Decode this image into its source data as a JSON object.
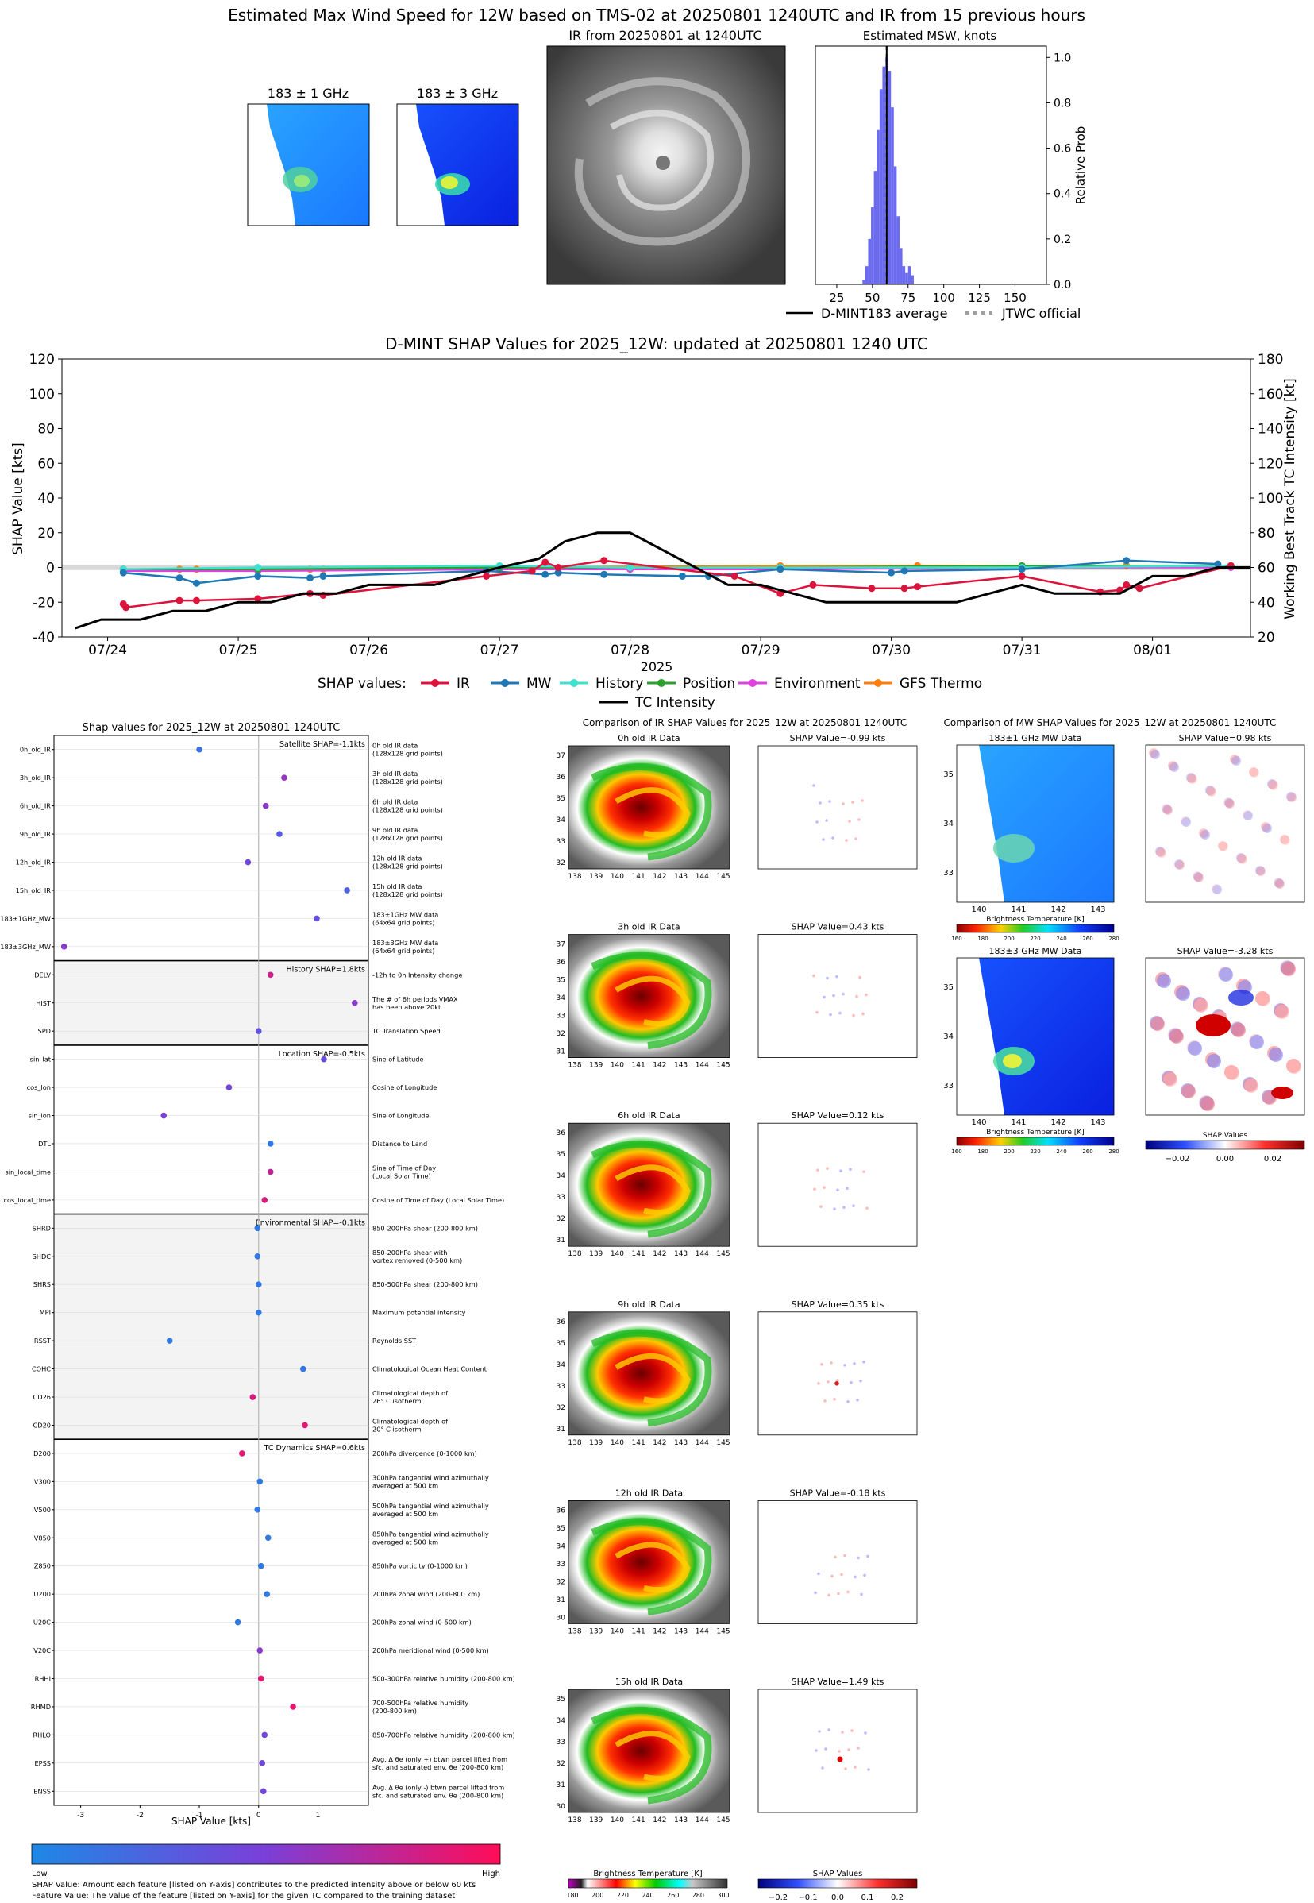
{
  "colors": {
    "ir": "#dc143c",
    "mw": "#1f77b4",
    "history": "#40e0d0",
    "position": "#2ca02c",
    "environment": "#e040e0",
    "gfs": "#ff7f0e",
    "intensity": "#000000",
    "hist_bar": "#6b6bf0",
    "shap_low": "#1e88e5",
    "shap_high": "#ff0d57"
  },
  "top": {
    "title": "Estimated Max Wind Speed for 12W based on TMS-02 at 20250801 1240UTC and IR from 15 previous hours",
    "mw1_title": "183 ± 1 GHz",
    "mw3_title": "183 ± 3 GHz",
    "ir_title": "IR from 20250801 at 1240UTC",
    "hist_title": "Estimated MSW, knots",
    "hist_ylabel": "Relative Prob",
    "legend_avg": "D-MINT183 average",
    "legend_jtwc": "JTWC official"
  },
  "hist_chart": {
    "type": "bar",
    "x_ticks": [
      25,
      50,
      75,
      100,
      125,
      150
    ],
    "y_ticks": [
      "0.0",
      "0.2",
      "0.4",
      "0.6",
      "0.8",
      "1.0"
    ],
    "xlim": [
      10,
      172
    ],
    "ylim": [
      0,
      1.05
    ],
    "bins": [
      {
        "x": 44,
        "v": 0.02
      },
      {
        "x": 46,
        "v": 0.08
      },
      {
        "x": 48,
        "v": 0.2
      },
      {
        "x": 50,
        "v": 0.34
      },
      {
        "x": 52,
        "v": 0.5
      },
      {
        "x": 54,
        "v": 0.68
      },
      {
        "x": 56,
        "v": 0.86
      },
      {
        "x": 58,
        "v": 0.96
      },
      {
        "x": 60,
        "v": 1.0
      },
      {
        "x": 62,
        "v": 0.94
      },
      {
        "x": 64,
        "v": 0.78
      },
      {
        "x": 66,
        "v": 0.52
      },
      {
        "x": 68,
        "v": 0.3
      },
      {
        "x": 70,
        "v": 0.16
      },
      {
        "x": 72,
        "v": 0.08
      },
      {
        "x": 74,
        "v": 0.05
      },
      {
        "x": 76,
        "v": 0.08
      },
      {
        "x": 78,
        "v": 0.04
      }
    ],
    "average": 60,
    "jtwc": 60
  },
  "timeseries": {
    "title": "D-MINT SHAP Values for 2025_12W: updated at 20250801 1240 UTC",
    "ylabel_left": "SHAP Value [kts]",
    "ylabel_right": "Working Best Track TC Intensity [kt]",
    "xlabel": "2025",
    "left_ticks": [
      -40,
      -20,
      0,
      20,
      40,
      60,
      80,
      100,
      120
    ],
    "right_ticks": [
      20,
      40,
      60,
      80,
      100,
      120,
      140,
      160,
      180
    ],
    "date_ticks": [
      {
        "t": 0,
        "label": "07/24"
      },
      {
        "t": 1,
        "label": "07/25"
      },
      {
        "t": 2,
        "label": "07/26"
      },
      {
        "t": 3,
        "label": "07/27"
      },
      {
        "t": 4,
        "label": "07/28"
      },
      {
        "t": 5,
        "label": "07/29"
      },
      {
        "t": 6,
        "label": "07/30"
      },
      {
        "t": 7,
        "label": "07/31"
      },
      {
        "t": 8,
        "label": "08/01"
      }
    ],
    "legend_prefix": "SHAP values:",
    "legend": [
      "IR",
      "MW",
      "History",
      "Position",
      "Environment",
      "GFS Thermo",
      "TC Intensity"
    ],
    "intensity_points": [
      [
        -0.25,
        25
      ],
      [
        -0.05,
        30
      ],
      [
        0.25,
        30
      ],
      [
        0.5,
        35
      ],
      [
        0.75,
        35
      ],
      [
        1.0,
        40
      ],
      [
        1.25,
        40
      ],
      [
        1.5,
        45
      ],
      [
        1.75,
        45
      ],
      [
        2.0,
        50
      ],
      [
        2.5,
        50
      ],
      [
        2.75,
        55
      ],
      [
        3.0,
        60
      ],
      [
        3.3,
        65
      ],
      [
        3.5,
        75
      ],
      [
        3.75,
        80
      ],
      [
        4.0,
        80
      ],
      [
        4.25,
        70
      ],
      [
        4.5,
        60
      ],
      [
        4.75,
        50
      ],
      [
        5.0,
        50
      ],
      [
        5.25,
        45
      ],
      [
        5.5,
        40
      ],
      [
        6.0,
        40
      ],
      [
        6.5,
        40
      ],
      [
        6.75,
        45
      ],
      [
        7.0,
        50
      ],
      [
        7.25,
        45
      ],
      [
        7.5,
        45
      ],
      [
        7.75,
        45
      ],
      [
        8.0,
        55
      ],
      [
        8.25,
        55
      ],
      [
        8.5,
        60
      ],
      [
        8.75,
        60
      ]
    ],
    "ir_points": [
      [
        0.12,
        -21
      ],
      [
        0.14,
        -23
      ],
      [
        0.55,
        -19
      ],
      [
        0.68,
        -19
      ],
      [
        1.15,
        -18
      ],
      [
        1.55,
        -15
      ],
      [
        1.65,
        -16
      ],
      [
        2.9,
        -5
      ],
      [
        3.25,
        -2
      ],
      [
        3.35,
        3
      ],
      [
        3.45,
        0
      ],
      [
        3.8,
        4
      ],
      [
        4.8,
        -5
      ],
      [
        5.15,
        -15
      ],
      [
        5.4,
        -10
      ],
      [
        5.85,
        -12
      ],
      [
        6.1,
        -12
      ],
      [
        6.2,
        -11
      ],
      [
        7.0,
        -5
      ],
      [
        7.6,
        -14
      ],
      [
        7.75,
        -13
      ],
      [
        7.8,
        -10
      ],
      [
        7.9,
        -12
      ],
      [
        8.6,
        1
      ]
    ],
    "mw_points": [
      [
        0.12,
        -3
      ],
      [
        0.55,
        -6
      ],
      [
        0.68,
        -9
      ],
      [
        1.15,
        -5
      ],
      [
        1.55,
        -6
      ],
      [
        1.65,
        -5
      ],
      [
        2.9,
        -2
      ],
      [
        3.35,
        -4
      ],
      [
        3.45,
        -3
      ],
      [
        3.8,
        -4
      ],
      [
        4.4,
        -5
      ],
      [
        4.6,
        -5
      ],
      [
        5.15,
        -1
      ],
      [
        6.0,
        -3
      ],
      [
        6.1,
        -2
      ],
      [
        7.0,
        -1
      ],
      [
        7.8,
        4
      ],
      [
        8.5,
        2
      ]
    ],
    "hist_points": [
      [
        0.12,
        -1
      ],
      [
        1.15,
        0
      ],
      [
        3.0,
        1
      ],
      [
        4.0,
        0
      ],
      [
        5.15,
        0
      ],
      [
        7.0,
        0
      ],
      [
        8.6,
        1
      ]
    ],
    "pos_points": [
      [
        0.12,
        -1
      ],
      [
        1.15,
        -1
      ],
      [
        3.0,
        0
      ],
      [
        4.0,
        0
      ],
      [
        5.15,
        0
      ],
      [
        7.0,
        1
      ],
      [
        8.6,
        1
      ]
    ],
    "env_points": [
      [
        0.12,
        -2
      ],
      [
        1.15,
        -2
      ],
      [
        3.0,
        -1
      ],
      [
        4.0,
        -1
      ],
      [
        5.15,
        -1
      ],
      [
        7.0,
        0
      ],
      [
        8.6,
        0
      ]
    ],
    "gfs_points": [
      [
        0.12,
        -1
      ],
      [
        0.55,
        -1
      ],
      [
        0.68,
        -1
      ],
      [
        1.15,
        -1
      ],
      [
        1.55,
        -1
      ],
      [
        1.65,
        -1
      ],
      [
        3.0,
        0
      ],
      [
        5.15,
        1
      ],
      [
        6.2,
        1
      ],
      [
        7.0,
        1
      ],
      [
        7.8,
        1
      ],
      [
        8.6,
        1
      ]
    ]
  },
  "shap": {
    "title": "Shap values for 2025_12W at 20250801 1240UTC",
    "xlabel": "SHAP Value [kts]",
    "x_ticks": [
      -3,
      -2,
      -1,
      0,
      1
    ],
    "xlim": [
      -3.45,
      1.85
    ],
    "cbar_low": "Low",
    "cbar_high": "High",
    "footnote_1": "SHAP Value: Amount each feature [listed on Y-axis] contributes to the predicted intensity above or below 60 kts",
    "footnote_2": "Feature Value: The value of the feature [listed on Y-axis] for the given TC compared to the training dataset",
    "groups": [
      {
        "label": "Satellite SHAP=-1.1kts",
        "n": 8,
        "shaded": false
      },
      {
        "label": "History SHAP=1.8kts",
        "n": 3,
        "shaded": true
      },
      {
        "label": "Location SHAP=-0.5kts",
        "n": 6,
        "shaded": false
      },
      {
        "label": "Environmental SHAP=-0.1kts",
        "n": 8,
        "shaded": true
      },
      {
        "label": "TC Dynamics SHAP=0.6kts",
        "n": 13,
        "shaded": false
      }
    ],
    "features": [
      {
        "name": "0h_old_IR",
        "desc": [
          "0h old IR data",
          "(128x128 grid points)"
        ],
        "value": -1.0,
        "c": 0.15
      },
      {
        "name": "3h_old_IR",
        "desc": [
          "3h old IR data",
          "(128x128 grid points)"
        ],
        "value": 0.43,
        "c": 0.6
      },
      {
        "name": "6h_old_IR",
        "desc": [
          "6h old IR data",
          "(128x128 grid points)"
        ],
        "value": 0.12,
        "c": 0.55
      },
      {
        "name": "9h_old_IR",
        "desc": [
          "9h old IR data",
          "(128x128 grid points)"
        ],
        "value": 0.35,
        "c": 0.3
      },
      {
        "name": "12h_old_IR",
        "desc": [
          "12h old IR data",
          "(128x128 grid points)"
        ],
        "value": -0.18,
        "c": 0.45
      },
      {
        "name": "15h_old_IR",
        "desc": [
          "15h old IR data",
          "(128x128 grid points)"
        ],
        "value": 1.49,
        "c": 0.25
      },
      {
        "name": "183±1GHz_MW",
        "desc": [
          "183±1GHz MW data",
          "(64x64 grid points)"
        ],
        "value": 0.98,
        "c": 0.4
      },
      {
        "name": "183±3GHz_MW",
        "desc": [
          "183±3GHz MW data",
          "(64x64 grid points)"
        ],
        "value": -3.28,
        "c": 0.55
      },
      {
        "name": "DELV",
        "desc": [
          "-12h to 0h Intensity change"
        ],
        "value": 0.2,
        "c": 0.8
      },
      {
        "name": "HIST",
        "desc": [
          "The # of 6h periods VMAX",
          "has been above 20kt"
        ],
        "value": 1.62,
        "c": 0.55
      },
      {
        "name": "SPD",
        "desc": [
          "TC Translation Speed"
        ],
        "value": 0.0,
        "c": 0.35
      },
      {
        "name": "sin_lat",
        "desc": [
          "Sine of Latitude"
        ],
        "value": 1.1,
        "c": 0.4
      },
      {
        "name": "cos_lon",
        "desc": [
          "Cosine of Longitude"
        ],
        "value": -0.5,
        "c": 0.45
      },
      {
        "name": "sin_lon",
        "desc": [
          "Sine of Longitude"
        ],
        "value": -1.6,
        "c": 0.5
      },
      {
        "name": "DTL",
        "desc": [
          "Distance to Land"
        ],
        "value": 0.2,
        "c": 0.1
      },
      {
        "name": "sin_local_time",
        "desc": [
          "Sine of Time of Day",
          "(Local Solar Time)"
        ],
        "value": 0.2,
        "c": 0.75
      },
      {
        "name": "cos_local_time",
        "desc": [
          "Cosine of Time of Day (Local Solar Time)"
        ],
        "value": 0.1,
        "c": 0.85
      },
      {
        "name": "SHRD",
        "desc": [
          "850-200hPa shear (200-800 km)"
        ],
        "value": -0.02,
        "c": 0.1
      },
      {
        "name": "SHDC",
        "desc": [
          "850-200hPa shear with",
          "vortex removed (0-500 km)"
        ],
        "value": -0.02,
        "c": 0.1
      },
      {
        "name": "SHRS",
        "desc": [
          "850-500hPa shear (200-800 km)"
        ],
        "value": 0.0,
        "c": 0.1
      },
      {
        "name": "MPI",
        "desc": [
          "Maximum potential intensity"
        ],
        "value": 0.0,
        "c": 0.1
      },
      {
        "name": "RSST",
        "desc": [
          "Reynolds SST"
        ],
        "value": -1.5,
        "c": 0.1
      },
      {
        "name": "COHC",
        "desc": [
          "Climatological Ocean Heat Content"
        ],
        "value": 0.75,
        "c": 0.1
      },
      {
        "name": "CD26",
        "desc": [
          "Climatological depth of",
          "26° C isotherm"
        ],
        "value": -0.1,
        "c": 0.85
      },
      {
        "name": "CD20",
        "desc": [
          "Climatological depth of",
          "20° C isotherm"
        ],
        "value": 0.78,
        "c": 0.9
      },
      {
        "name": "D200",
        "desc": [
          "200hPa divergence (0-1000 km)"
        ],
        "value": -0.28,
        "c": 0.9
      },
      {
        "name": "V300",
        "desc": [
          "300hPa tangential wind azimuthally",
          "averaged at 500 km"
        ],
        "value": 0.02,
        "c": 0.1
      },
      {
        "name": "V500",
        "desc": [
          "500hPa tangential wind azimuthally",
          "averaged at 500 km"
        ],
        "value": -0.02,
        "c": 0.1
      },
      {
        "name": "V850",
        "desc": [
          "850hPa tangential wind azimuthally",
          "averaged at 500 km"
        ],
        "value": 0.16,
        "c": 0.1
      },
      {
        "name": "Z850",
        "desc": [
          "850hPa vorticity (0-1000 km)"
        ],
        "value": 0.04,
        "c": 0.1
      },
      {
        "name": "U200",
        "desc": [
          "200hPa zonal wind (200-800 km)"
        ],
        "value": 0.14,
        "c": 0.1
      },
      {
        "name": "U20C",
        "desc": [
          "200hPa zonal wind (0-500 km)"
        ],
        "value": -0.35,
        "c": 0.1
      },
      {
        "name": "V20C",
        "desc": [
          "200hPa meridional wind (0-500 km)"
        ],
        "value": 0.02,
        "c": 0.55
      },
      {
        "name": "RHHI",
        "desc": [
          "500-300hPa relative humidity (200-800 km)"
        ],
        "value": 0.04,
        "c": 0.9
      },
      {
        "name": "RHMD",
        "desc": [
          "700-500hPa relative humidity",
          "(200-800 km)"
        ],
        "value": 0.58,
        "c": 0.9
      },
      {
        "name": "RHLO",
        "desc": [
          "850-700hPa relative humidity (200-800 km)"
        ],
        "value": 0.1,
        "c": 0.45
      },
      {
        "name": "EPSS",
        "desc": [
          "Avg. Δ θe (only +) btwn parcel lifted from",
          "sfc. and saturated env. θe (200-800 km)"
        ],
        "value": 0.06,
        "c": 0.45
      },
      {
        "name": "ENSS",
        "desc": [
          "Avg. Δ θe (only -) btwn parcel lifted from",
          "sfc. and saturated env. θe (200-800 km)"
        ],
        "value": 0.08,
        "c": 0.45
      }
    ]
  },
  "ir_compare": {
    "title": "Comparison of IR SHAP Values for 2025_12W at 20250801 1240UTC",
    "x_ticks": [
      "138",
      "139",
      "140",
      "141",
      "142",
      "143",
      "144",
      "145"
    ],
    "rows": [
      {
        "data_title": "0h old IR Data",
        "shap_title": "SHAP Value=-0.99 kts",
        "y_ticks": [
          "37",
          "36",
          "35",
          "34",
          "33",
          "32"
        ]
      },
      {
        "data_title": "3h old IR Data",
        "shap_title": "SHAP Value=0.43 kts",
        "y_ticks": [
          "37",
          "36",
          "35",
          "34",
          "33",
          "32",
          "31"
        ]
      },
      {
        "data_title": "6h old IR Data",
        "shap_title": "SHAP Value=0.12 kts",
        "y_ticks": [
          "36",
          "35",
          "34",
          "33",
          "32",
          "31"
        ]
      },
      {
        "data_title": "9h old IR Data",
        "shap_title": "SHAP Value=0.35 kts",
        "y_ticks": [
          "36",
          "35",
          "34",
          "33",
          "32",
          "31"
        ]
      },
      {
        "data_title": "12h old IR Data",
        "shap_title": "SHAP Value=-0.18 kts",
        "y_ticks": [
          "36",
          "35",
          "34",
          "33",
          "32",
          "31",
          "30"
        ]
      },
      {
        "data_title": "15h old IR Data",
        "shap_title": "SHAP Value=1.49 kts",
        "y_ticks": [
          "35",
          "34",
          "33",
          "32",
          "31",
          "30"
        ]
      }
    ],
    "cbar_bt_label": "Brightness Temperature [K]",
    "cbar_bt_ticks": [
      "180",
      "200",
      "220",
      "240",
      "260",
      "280",
      "300"
    ],
    "cbar_shap_label": "SHAP Values",
    "cbar_shap_ticks": [
      "−0.2",
      "−0.1",
      "0.0",
      "0.1",
      "0.2"
    ]
  },
  "mw_compare": {
    "title": "Comparison of MW SHAP Values for 2025_12W at 20250801 1240UTC",
    "x_ticks": [
      "140",
      "141",
      "142",
      "143"
    ],
    "y_ticks": [
      "35",
      "34",
      "33"
    ],
    "rows": [
      {
        "data_title": "183±1 GHz MW Data",
        "shap_title": "SHAP Value=0.98 kts"
      },
      {
        "data_title": "183±3 GHz MW Data",
        "shap_title": "SHAP Value=-3.28 kts"
      }
    ],
    "cbar_bt_label": "Brightness Temperature [K]",
    "cbar_bt_ticks": [
      "160",
      "180",
      "200",
      "220",
      "240",
      "260",
      "280"
    ],
    "cbar_shap_label": "SHAP Values",
    "cbar_shap_ticks": [
      "−0.02",
      "0.00",
      "0.02"
    ]
  }
}
